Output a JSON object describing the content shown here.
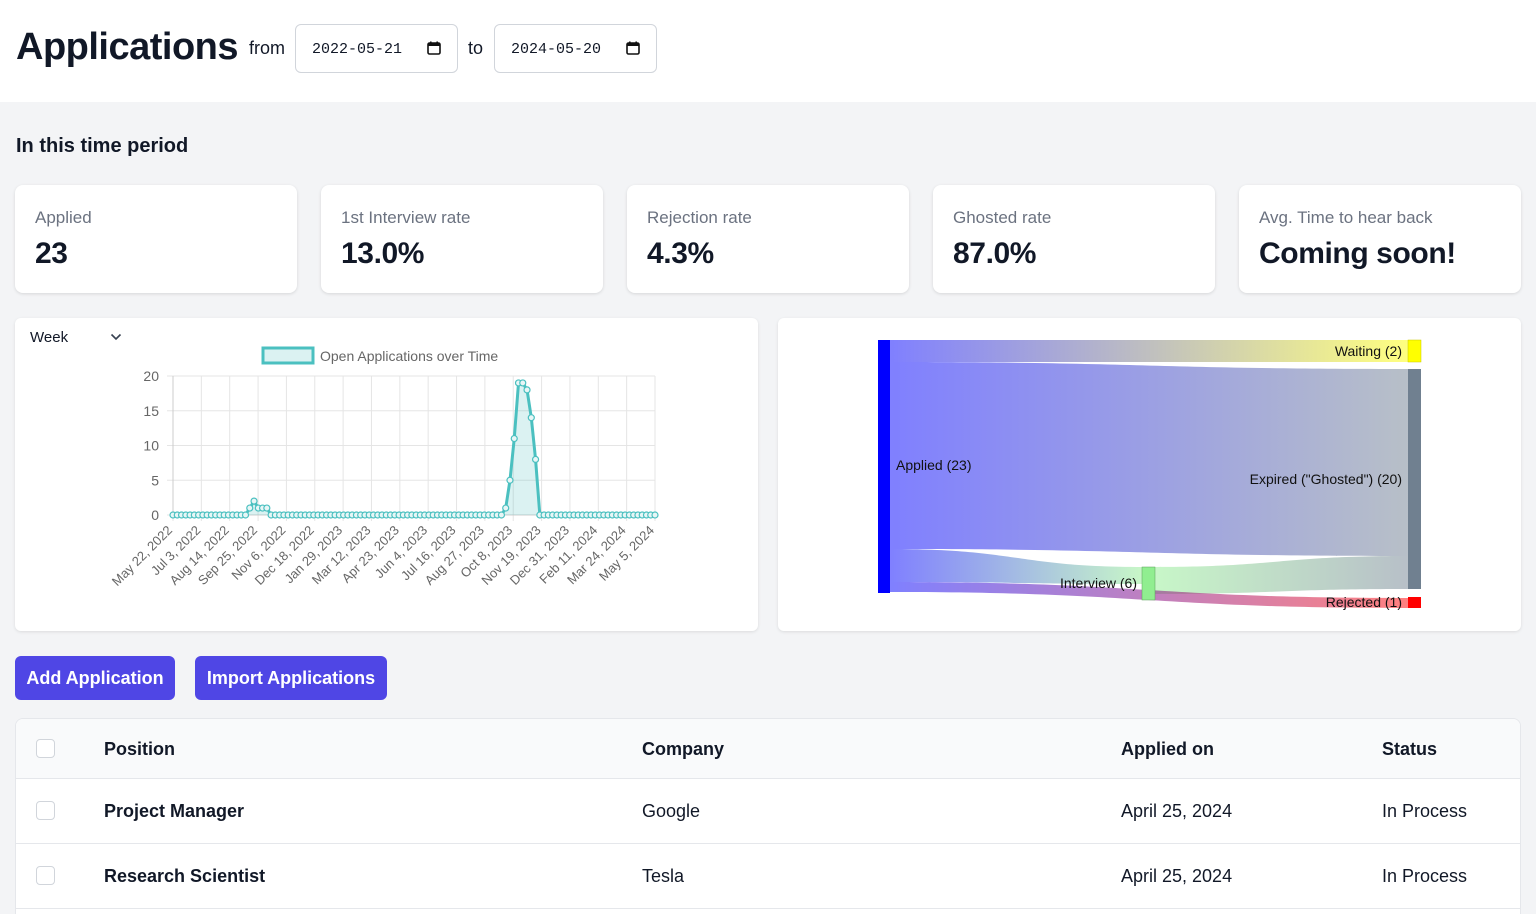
{
  "header": {
    "title": "Applications",
    "from_label": "from",
    "to_label": "to",
    "from_date": "2022-05-21",
    "to_date": "2024-05-20"
  },
  "section_title": "In this time period",
  "stats": [
    {
      "label": "Applied",
      "value": "23"
    },
    {
      "label": "1st Interview rate",
      "value": "13.0%"
    },
    {
      "label": "Rejection rate",
      "value": "4.3%"
    },
    {
      "label": "Ghosted rate",
      "value": "87.0%"
    },
    {
      "label": "Avg. Time to hear back",
      "value": "Coming soon!"
    }
  ],
  "granularity_select": {
    "value": "Week"
  },
  "chart_data": {
    "type": "area",
    "title": "",
    "legend": [
      "Open Applications over Time"
    ],
    "xlabel": "",
    "ylabel": "",
    "ylim": [
      0,
      20
    ],
    "yticks": [
      0,
      5,
      10,
      15,
      20
    ],
    "xticks": [
      "May 22, 2022",
      "Jul 3, 2022",
      "Aug 14, 2022",
      "Sep 25, 2022",
      "Nov 6, 2022",
      "Dec 18, 2022",
      "Jan 29, 2023",
      "Mar 12, 2023",
      "Apr 23, 2023",
      "Jun 4, 2023",
      "Jul 16, 2023",
      "Aug 27, 2023",
      "Oct 8, 2023",
      "Nov 19, 2023",
      "Dec 31, 2023",
      "Feb 11, 2024",
      "Mar 24, 2024",
      "May 5, 2024"
    ],
    "series": [
      {
        "name": "Open Applications over Time",
        "values": [
          0,
          0,
          0,
          0,
          0,
          0,
          0,
          0,
          0,
          0,
          0,
          0,
          0,
          0,
          0,
          0,
          0,
          0,
          1,
          2,
          1,
          1,
          1,
          0,
          0,
          0,
          0,
          0,
          0,
          0,
          0,
          0,
          0,
          0,
          0,
          0,
          0,
          0,
          0,
          0,
          0,
          0,
          0,
          0,
          0,
          0,
          0,
          0,
          0,
          0,
          0,
          0,
          0,
          0,
          0,
          0,
          0,
          0,
          0,
          0,
          0,
          0,
          0,
          0,
          0,
          0,
          0,
          0,
          0,
          0,
          0,
          0,
          0,
          0,
          0,
          0,
          0,
          0,
          1,
          5,
          11,
          19,
          19,
          18,
          14,
          8,
          0,
          0,
          0,
          0,
          0,
          0,
          0,
          0,
          0,
          0,
          0,
          0,
          0,
          0,
          0,
          0,
          0,
          0,
          0,
          0,
          0,
          0,
          0,
          0,
          0,
          0,
          0,
          0
        ]
      }
    ],
    "colors": {
      "line": "#4bc0c0",
      "fill": "rgba(75,192,192,0.2)"
    }
  },
  "sankey": {
    "nodes": [
      {
        "label": "Applied (23)",
        "color": "#0000ff"
      },
      {
        "label": "Waiting (2)",
        "color": "#ffff00"
      },
      {
        "label": "Expired (\"Ghosted\") (20)",
        "color": "#708090"
      },
      {
        "label": "Interview (6)",
        "color": "#90ee90"
      },
      {
        "label": "Rejected (1)",
        "color": "#ff0000"
      }
    ]
  },
  "actions": {
    "add_label": "Add Application",
    "import_label": "Import Applications"
  },
  "table": {
    "columns": [
      "Position",
      "Company",
      "Applied on",
      "Status"
    ],
    "rows": [
      {
        "position": "Project Manager",
        "company": "Google",
        "applied_on": "April 25, 2024",
        "status": "In Process"
      },
      {
        "position": "Research Scientist",
        "company": "Tesla",
        "applied_on": "April 25, 2024",
        "status": "In Process"
      }
    ]
  }
}
